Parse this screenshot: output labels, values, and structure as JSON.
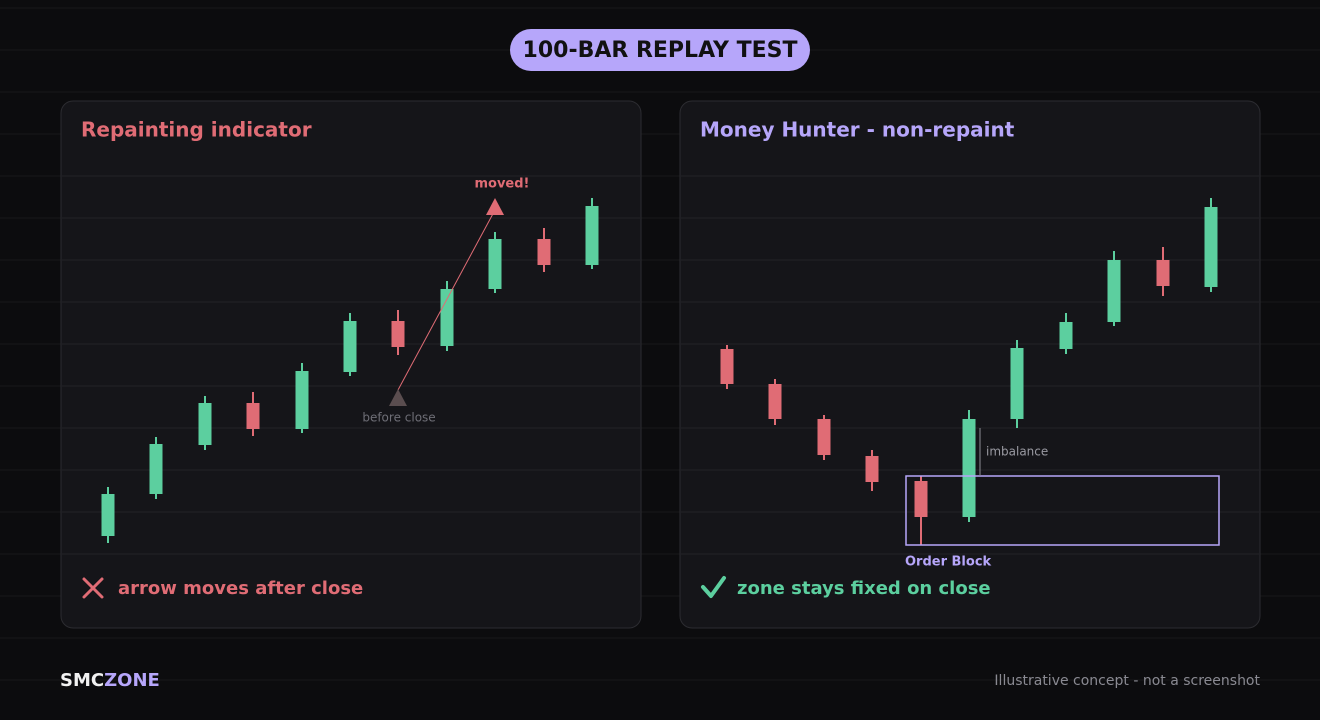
{
  "header": {
    "title": "100-BAR REPLAY TEST"
  },
  "panels": [
    {
      "title": "Repainting indicator",
      "annotations": {
        "moved": "moved!",
        "before": "before close"
      },
      "footer": "arrow moves after close"
    },
    {
      "title": "Money Hunter - non-repaint",
      "annotations": {
        "imbalance": "imbalance",
        "order_block": "Order Block"
      },
      "footer": "zone stays fixed on close"
    }
  ],
  "brand": {
    "first": "SMC",
    "second": "ZONE"
  },
  "disclaimer": "Illustrative concept - not a screenshot"
}
